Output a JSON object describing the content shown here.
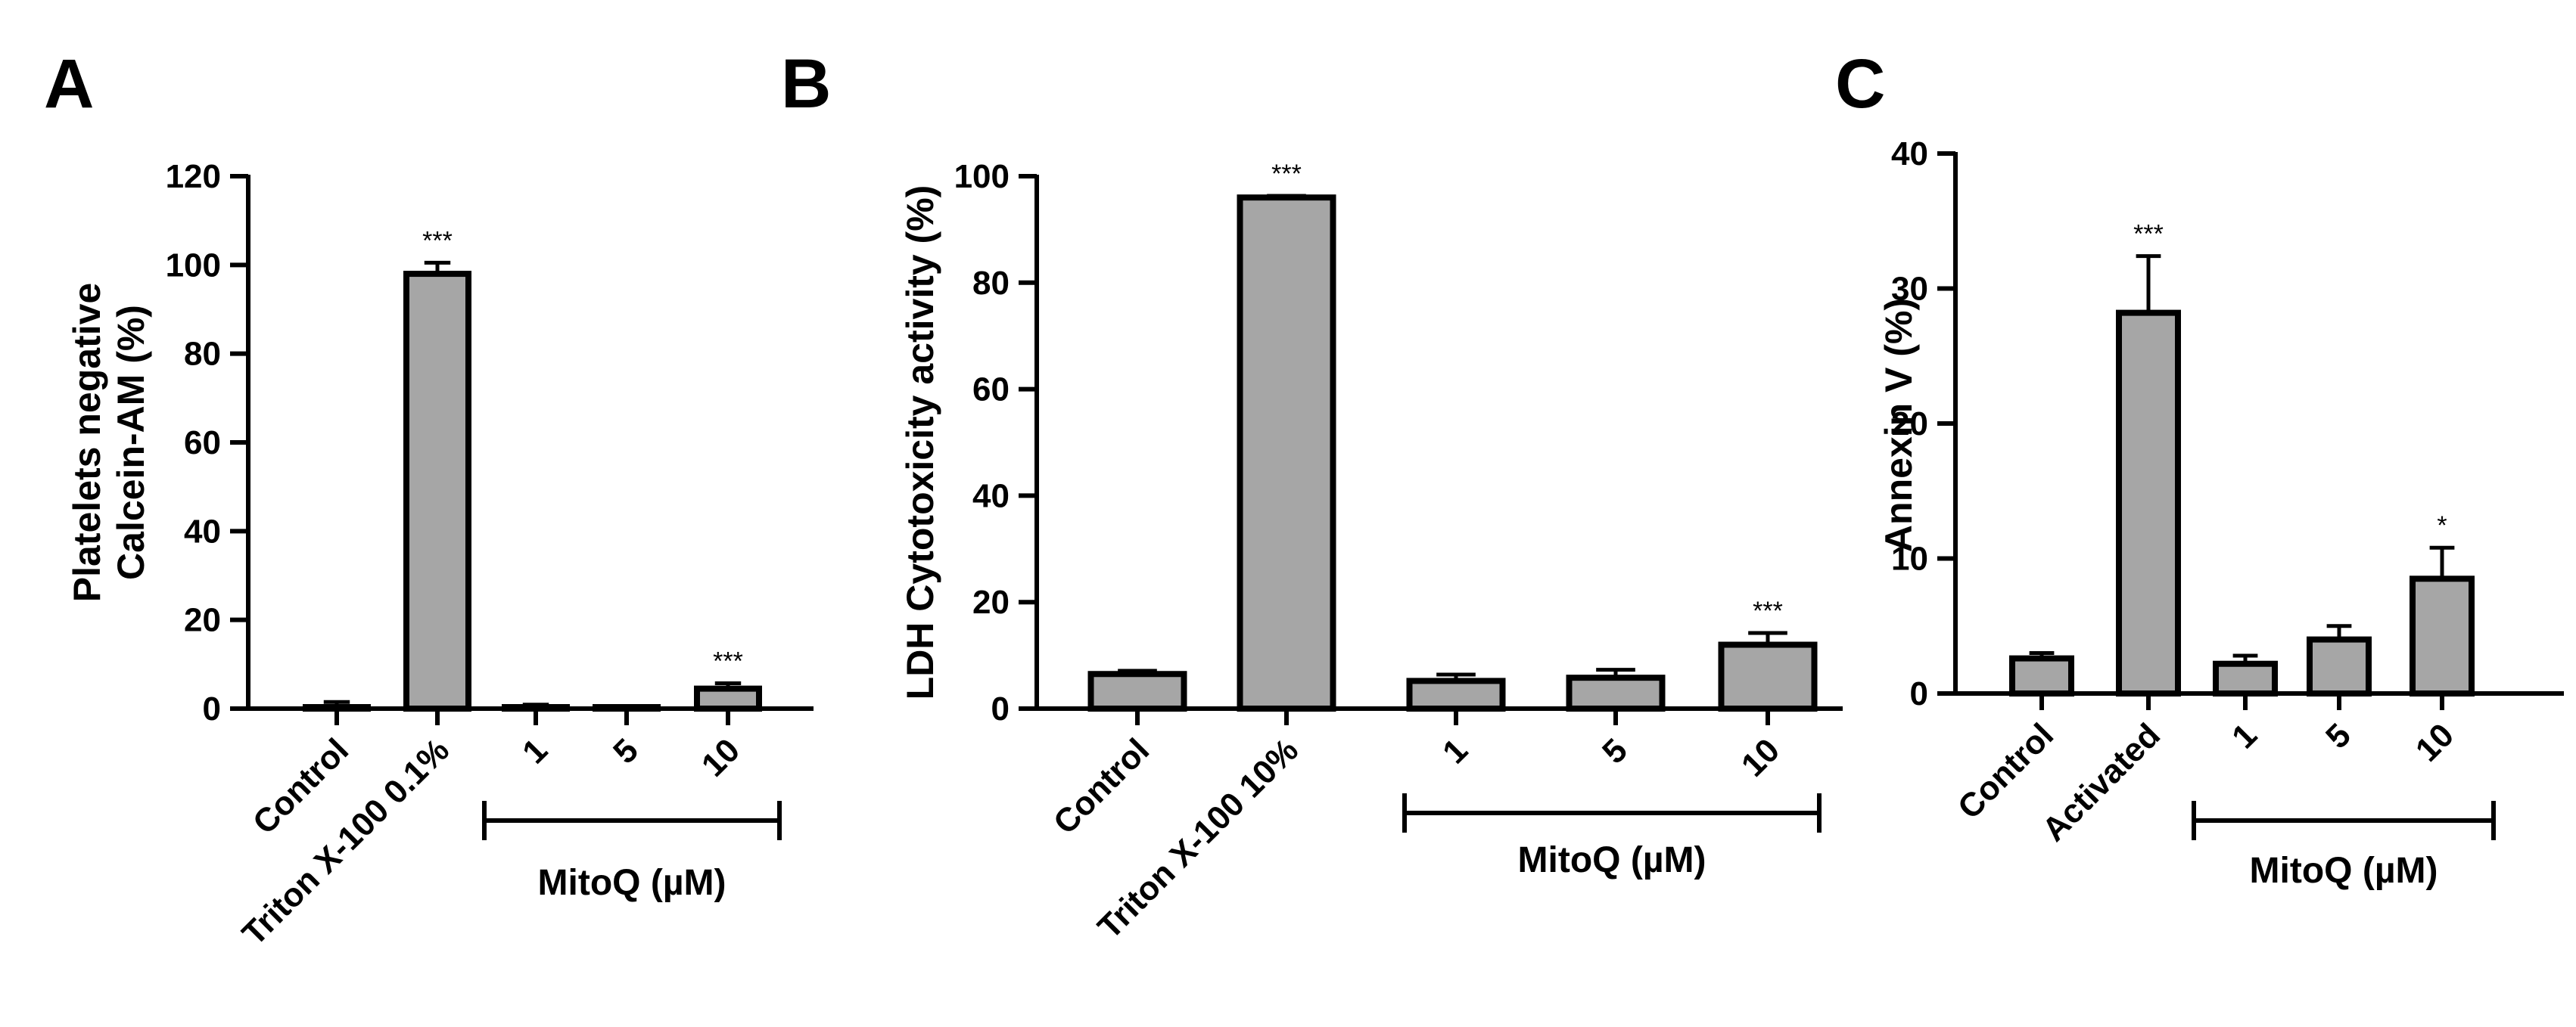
{
  "figure": {
    "bar_fill": "#a6a6a6",
    "bar_stroke": "#000000",
    "axis_color": "#000000"
  },
  "chart_data": [
    {
      "type": "bar",
      "panel_letter": "A",
      "ylabel": [
        "Platelets negative",
        "Calcein-AM (%)"
      ],
      "ylim": [
        0,
        120
      ],
      "yticks": [
        0,
        20,
        40,
        60,
        80,
        100,
        120
      ],
      "categories": [
        "Control",
        "Triton X-100 0.1%",
        "1",
        "5",
        "10"
      ],
      "values": [
        0.3,
        98,
        0.3,
        0.2,
        4.5
      ],
      "errors": [
        1.2,
        2.5,
        0.6,
        0.4,
        1.2
      ],
      "significance": [
        "",
        "***",
        "",
        "",
        "***"
      ],
      "group": {
        "label": "MitoQ (µM)",
        "from": 2,
        "to": 4
      }
    },
    {
      "type": "bar",
      "panel_letter": "B",
      "ylabel": [
        "LDH Cytotoxicity activity (%)"
      ],
      "ylim": [
        0,
        100
      ],
      "yticks": [
        0,
        20,
        40,
        60,
        80,
        100
      ],
      "categories": [
        "Control",
        "Triton X-100 10%",
        "1",
        "5",
        "10"
      ],
      "values": [
        6.5,
        96,
        5.2,
        5.8,
        12
      ],
      "errors": [
        0.6,
        0.3,
        1.2,
        1.5,
        2.2
      ],
      "significance": [
        "",
        "***",
        "",
        "",
        "***"
      ],
      "group": {
        "label": "MitoQ (µM)",
        "from": 2,
        "to": 4
      }
    },
    {
      "type": "bar",
      "panel_letter": "C",
      "ylabel": [
        "Annexin V (%)"
      ],
      "ylim": [
        0,
        40
      ],
      "yticks": [
        0,
        10,
        20,
        30,
        40
      ],
      "categories": [
        "Control",
        "Activated",
        "1",
        "5",
        "10"
      ],
      "values": [
        2.6,
        28.2,
        2.2,
        4.0,
        8.5
      ],
      "errors": [
        0.4,
        4.2,
        0.6,
        1.0,
        2.3
      ],
      "significance": [
        "",
        "***",
        "",
        "",
        "*"
      ],
      "group": {
        "label": "MitoQ (µM)",
        "from": 2,
        "to": 4
      }
    }
  ]
}
